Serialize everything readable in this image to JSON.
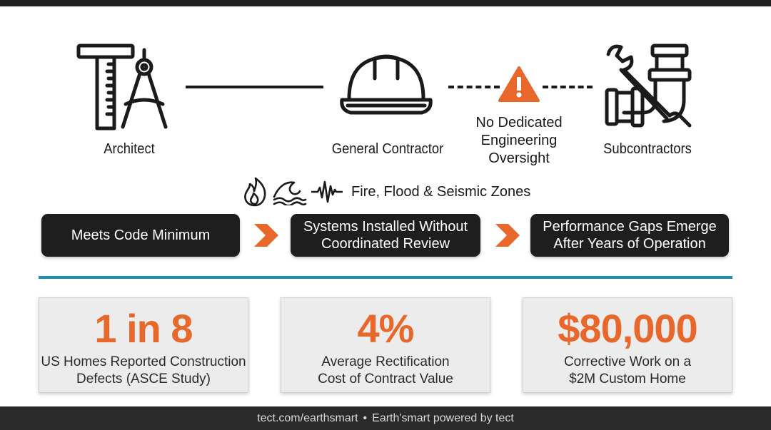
{
  "roles": {
    "architect": "Architect",
    "general_contractor": "General Contractor",
    "subcontractors": "Subcontractors"
  },
  "warning": {
    "icon": "warning-triangle-icon",
    "line1": "No Dedicated",
    "line2": "Engineering",
    "line3": "Oversight",
    "color": "#e8672a"
  },
  "hazards": {
    "icons": [
      "fire-icon",
      "wave-icon",
      "seismic-icon"
    ],
    "label": "Fire, Flood & Seismic Zones"
  },
  "process": [
    {
      "line1": "Meets Code Minimum",
      "line2": ""
    },
    {
      "line1": "Systems Installed Without",
      "line2": "Coordinated Review"
    },
    {
      "line1": "Performance Gaps Emerge",
      "line2": "After Years of Operation"
    }
  ],
  "stats": [
    {
      "value": "1 in 8",
      "line1": "US Homes Reported Construction",
      "line2": "Defects (ASCE Study)"
    },
    {
      "value": "4%",
      "line1": "Average Rectification",
      "line2": "Cost of Contract Value"
    },
    {
      "value": "$80,000",
      "line1": "Corrective Work on a",
      "line2": "$2M Custom Home"
    }
  ],
  "footer": {
    "url": "tect.com/earthsmart",
    "separator": "•",
    "brand": "Earth'smart powered by tect"
  },
  "colors": {
    "accent": "#e8672a",
    "divider": "#1a8fb3",
    "dark": "#1e1e1e"
  }
}
